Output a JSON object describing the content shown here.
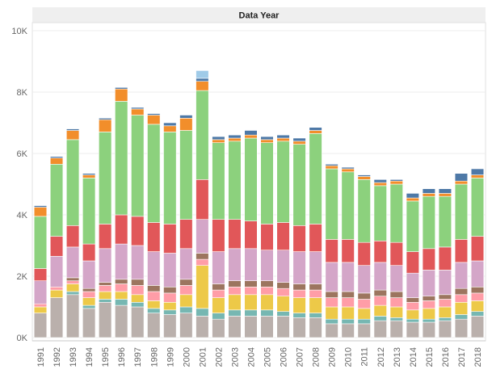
{
  "chart_data": {
    "type": "bar",
    "stacked": true,
    "title": "Data Year",
    "xlabel": "",
    "ylabel": "",
    "ylim": [
      0,
      10000
    ],
    "yticks": [
      0,
      2000,
      4000,
      6000,
      8000,
      10000
    ],
    "ytick_labels": [
      "0K",
      "2K",
      "4K",
      "6K",
      "8K",
      "10K"
    ],
    "grid": true,
    "legend": "none",
    "categories": [
      "1991",
      "1992",
      "1993",
      "1994",
      "1995",
      "1996",
      "1997",
      "1998",
      "1999",
      "2000",
      "2001",
      "2002",
      "2003",
      "2004",
      "2005",
      "2006",
      "2007",
      "2008",
      "2009",
      "2010",
      "2011",
      "2012",
      "2013",
      "2014",
      "2015",
      "2016",
      "2017",
      "2018"
    ],
    "series": [
      {
        "color": "#bab0ac",
        "values": [
          800,
          1300,
          1400,
          950,
          1150,
          1050,
          1000,
          800,
          750,
          800,
          700,
          600,
          700,
          700,
          700,
          700,
          650,
          650,
          450,
          450,
          450,
          550,
          550,
          500,
          500,
          550,
          600,
          700
        ]
      },
      {
        "color": "#76b7b2",
        "values": [
          0,
          0,
          100,
          100,
          100,
          200,
          150,
          150,
          150,
          200,
          250,
          200,
          200,
          200,
          200,
          150,
          150,
          150,
          150,
          150,
          150,
          150,
          100,
          100,
          100,
          100,
          150,
          150
        ]
      },
      {
        "color": "#edc948",
        "values": [
          200,
          250,
          250,
          250,
          250,
          250,
          250,
          250,
          250,
          400,
          1400,
          500,
          500,
          500,
          500,
          500,
          500,
          500,
          400,
          400,
          350,
          350,
          350,
          300,
          350,
          350,
          400,
          350
        ]
      },
      {
        "color": "#ff9da7",
        "values": [
          100,
          100,
          100,
          200,
          200,
          250,
          300,
          300,
          300,
          300,
          200,
          250,
          250,
          250,
          250,
          250,
          250,
          250,
          300,
          300,
          300,
          300,
          300,
          250,
          250,
          250,
          250,
          250
        ]
      },
      {
        "color": "#9c755f",
        "values": [
          0,
          0,
          100,
          100,
          100,
          150,
          200,
          200,
          200,
          200,
          200,
          200,
          200,
          200,
          200,
          200,
          200,
          200,
          200,
          200,
          200,
          200,
          200,
          150,
          150,
          150,
          200,
          200
        ]
      },
      {
        "color": "#d4a6c8",
        "values": [
          750,
          1000,
          1000,
          900,
          1100,
          1150,
          1100,
          1100,
          1100,
          1000,
          1100,
          1050,
          1050,
          1050,
          1000,
          1050,
          1050,
          1050,
          950,
          950,
          900,
          900,
          850,
          800,
          850,
          800,
          850,
          850
        ]
      },
      {
        "color": "#e15759",
        "values": [
          400,
          650,
          700,
          550,
          800,
          950,
          950,
          950,
          950,
          950,
          1300,
          1050,
          950,
          900,
          850,
          900,
          850,
          900,
          750,
          750,
          750,
          700,
          750,
          700,
          700,
          750,
          750,
          800
        ]
      },
      {
        "color": "#8cd17d",
        "values": [
          1700,
          2350,
          2800,
          2150,
          3000,
          3700,
          3300,
          3200,
          3000,
          2900,
          2900,
          2500,
          2550,
          2700,
          2650,
          2650,
          2650,
          2950,
          2300,
          2200,
          2050,
          1800,
          1900,
          1650,
          1700,
          1650,
          1800,
          1900
        ]
      },
      {
        "color": "#f28e2b",
        "values": [
          300,
          200,
          300,
          100,
          400,
          400,
          200,
          300,
          200,
          400,
          300,
          100,
          100,
          100,
          100,
          100,
          100,
          100,
          100,
          100,
          100,
          100,
          100,
          100,
          100,
          100,
          100,
          100
        ]
      },
      {
        "color": "#4e79a7",
        "values": [
          50,
          50,
          50,
          50,
          50,
          50,
          50,
          50,
          100,
          100,
          100,
          100,
          100,
          150,
          100,
          100,
          100,
          100,
          50,
          50,
          50,
          100,
          50,
          150,
          150,
          150,
          250,
          200
        ]
      },
      {
        "color": "#a0cbe8",
        "values": [
          0,
          0,
          0,
          0,
          0,
          0,
          0,
          0,
          0,
          0,
          250,
          0,
          0,
          0,
          0,
          0,
          0,
          0,
          0,
          0,
          0,
          0,
          0,
          0,
          0,
          0,
          0,
          0
        ]
      }
    ]
  }
}
